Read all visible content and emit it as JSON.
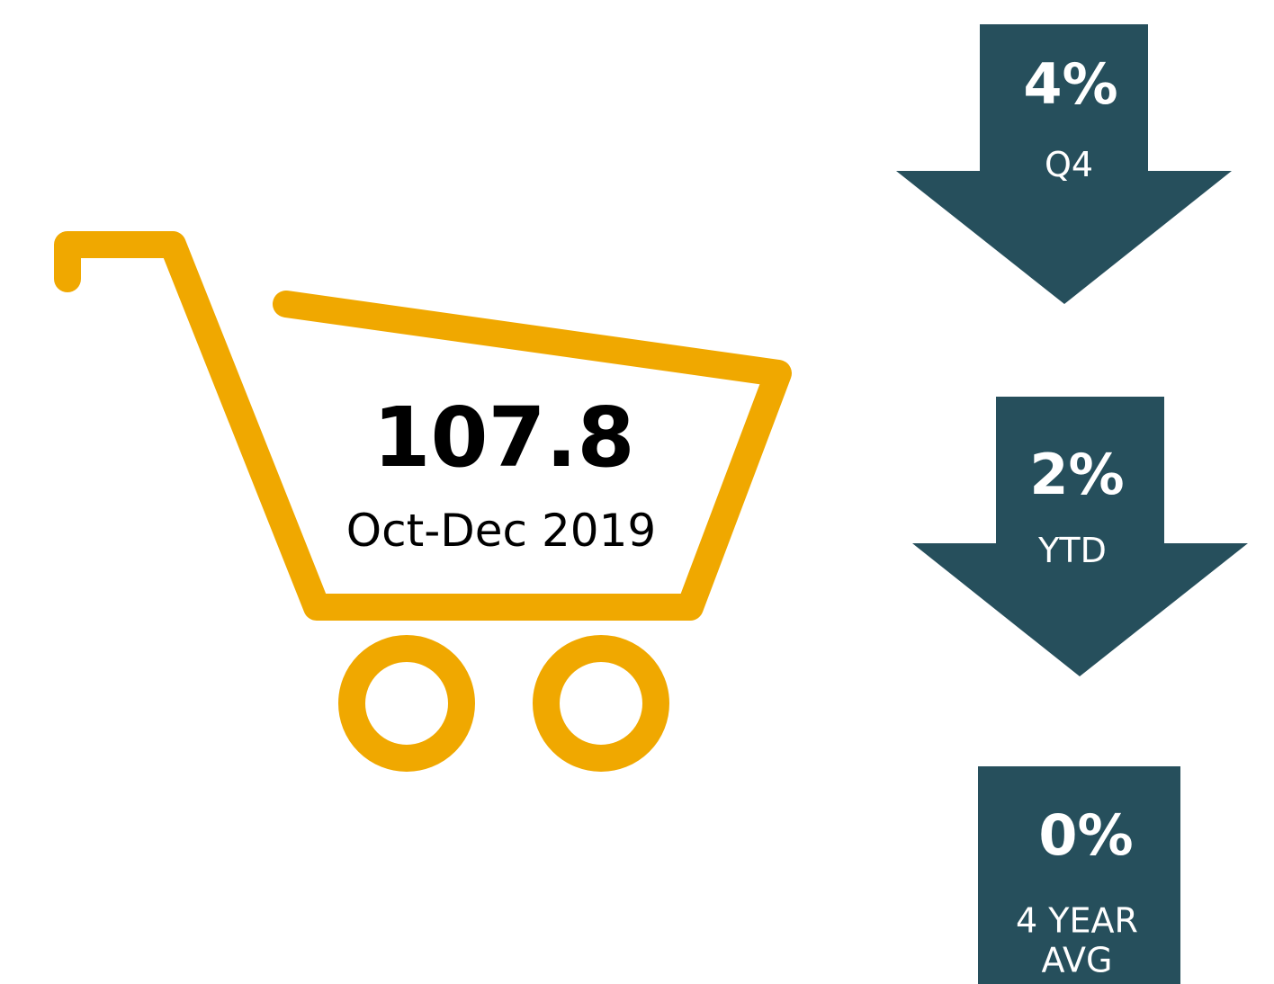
{
  "main": {
    "value": "107.8",
    "period": "Oct-Dec 2019"
  },
  "indicators": [
    {
      "value": "4%",
      "label": "Q4"
    },
    {
      "value": "2%",
      "label": "YTD"
    },
    {
      "value": "0%",
      "label": "4 YEAR AVG"
    }
  ]
}
